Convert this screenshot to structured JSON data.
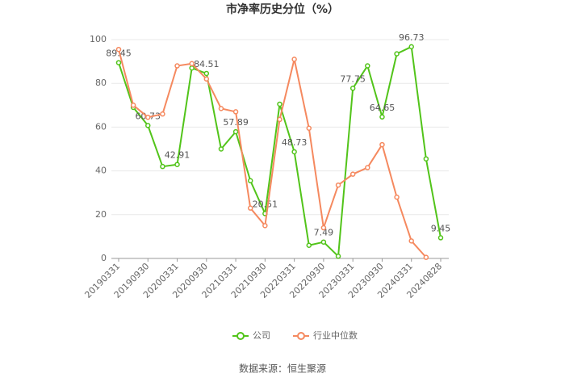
{
  "chart_data": {
    "type": "line",
    "title": "市净率历史分位（%）",
    "categories": [
      "20190331",
      null,
      "20190930",
      null,
      "20200331",
      null,
      "20200930",
      null,
      "20210331",
      null,
      "20210930",
      null,
      "20220331",
      null,
      "20220930",
      null,
      "20230331",
      null,
      "20230930",
      null,
      "20240331",
      null,
      "20240828"
    ],
    "series": [
      {
        "name": "公司",
        "color": "#52c41a",
        "values": [
          89.45,
          69,
          60.73,
          42,
          42.91,
          87,
          84.51,
          50,
          57.89,
          35.5,
          20.51,
          70.5,
          48.73,
          6,
          7.49,
          1,
          77.75,
          88,
          64.65,
          93.5,
          96.73,
          45.5,
          9.45
        ],
        "value_labels": [
          "89.45",
          null,
          "60.73",
          null,
          "42.91",
          null,
          "84.51",
          null,
          "57.89",
          null,
          "20.51",
          null,
          "48.73",
          null,
          "7.49",
          null,
          "77.75",
          null,
          "64.65",
          null,
          "96.73",
          null,
          "9.45"
        ]
      },
      {
        "name": "行业中位数",
        "color": "#f5895f",
        "values": [
          95.5,
          70,
          64.5,
          66,
          88,
          89,
          82,
          68.5,
          67,
          23,
          15,
          63.5,
          91,
          59.5,
          14,
          33.5,
          38.5,
          41.5,
          52,
          28,
          8,
          0.5,
          null
        ]
      }
    ],
    "ylim": [
      0,
      100
    ],
    "yticks": [
      0,
      20,
      40,
      60,
      80,
      100
    ],
    "grid": true,
    "source": "数据来源：恒生聚源"
  }
}
